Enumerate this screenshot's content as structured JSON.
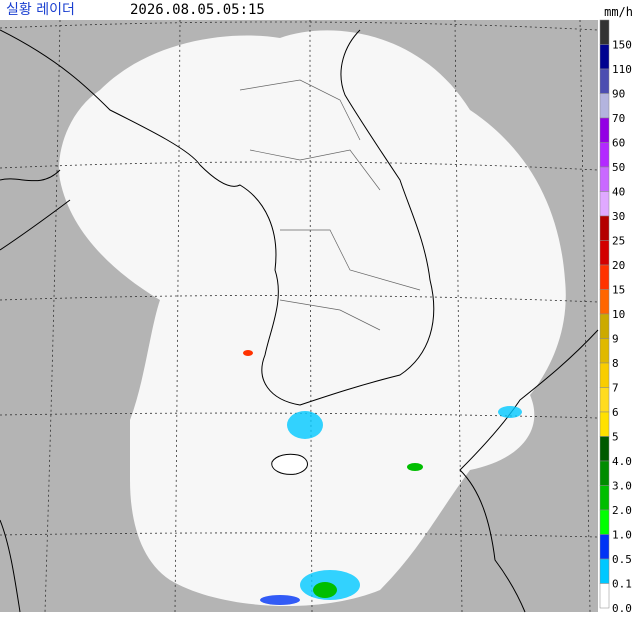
{
  "header": {
    "title": "실황 레이더",
    "timestamp": "2026.08.05.05:15",
    "unit": "mm/h"
  },
  "legend": [
    {
      "label": "150",
      "color": "#333333"
    },
    {
      "label": "110",
      "color": "#000390"
    },
    {
      "label": "90",
      "color": "#4c4eb1"
    },
    {
      "label": "70",
      "color": "#b3b4de"
    },
    {
      "label": "60",
      "color": "#9300e4"
    },
    {
      "label": "50",
      "color": "#b329ff"
    },
    {
      "label": "40",
      "color": "#c969ff"
    },
    {
      "label": "30",
      "color": "#e0a9ff"
    },
    {
      "label": "25",
      "color": "#b40000"
    },
    {
      "label": "20",
      "color": "#d20000"
    },
    {
      "label": "15",
      "color": "#ff3200"
    },
    {
      "label": "10",
      "color": "#ff6600"
    },
    {
      "label": "9",
      "color": "#ccaa00"
    },
    {
      "label": "8",
      "color": "#e0b900"
    },
    {
      "label": "7",
      "color": "#f9cd00"
    },
    {
      "label": "6",
      "color": "#ffdc1f"
    },
    {
      "label": "5",
      "color": "#ffe100"
    },
    {
      "label": "4.0",
      "color": "#005a00"
    },
    {
      "label": "3.0",
      "color": "#008c00"
    },
    {
      "label": "2.0",
      "color": "#00be00"
    },
    {
      "label": "1.0",
      "color": "#00ff00"
    },
    {
      "label": "0.5",
      "color": "#0033f5"
    },
    {
      "label": "0.1",
      "color": "#00c8ff"
    },
    {
      "label": "0.0",
      "color": "#ffffff"
    }
  ]
}
